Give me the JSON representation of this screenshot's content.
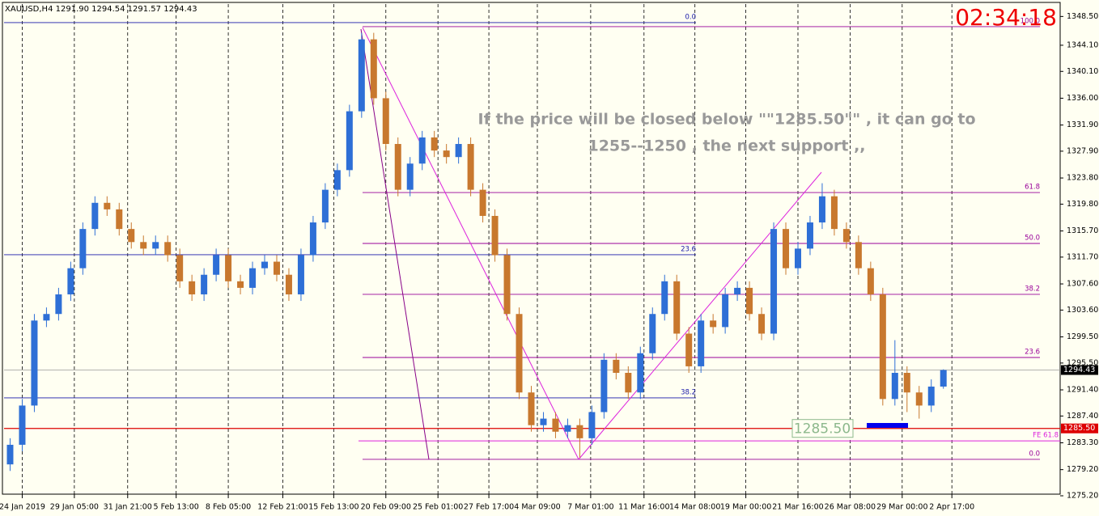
{
  "chart_data": {
    "type": "candlestick",
    "title": "XAUUSD,H4  1291.90 1294.54 1291.57 1294.43",
    "timer": "02:34:18",
    "annotation": [
      "If the price will be closed below \"\"1285.50\"\" , it can go to",
      "1255--1250 , the next support ,,"
    ],
    "up_color": "#2e6fd6",
    "down_color": "#c8782e",
    "open": [
      1280,
      1283,
      1289,
      1302,
      1303,
      1306,
      1310,
      1316,
      1320,
      1319,
      1316,
      1314,
      1313,
      1314,
      1312,
      1308,
      1306,
      1309,
      1312,
      1308,
      1307,
      1310,
      1311,
      1309,
      1306,
      1312,
      1317,
      1322,
      1325,
      1334,
      1345,
      1336,
      1329,
      1322,
      1326,
      1330,
      1328,
      1327,
      1329,
      1322,
      1318,
      1312,
      1303,
      1291,
      1286,
      1287,
      1285,
      1286,
      1284,
      1288,
      1296,
      1294,
      1291,
      1297,
      1303,
      1308,
      1300,
      1295,
      1302,
      1301,
      1306,
      1307,
      1303,
      1300,
      1316,
      1310,
      1313,
      1317,
      1321,
      1316,
      1314,
      1310,
      1306,
      1290,
      1294,
      1291,
      1289,
      1291.9
    ],
    "high": [
      1284,
      1290,
      1303,
      1304,
      1307,
      1311,
      1317,
      1321,
      1321,
      1320,
      1317,
      1315,
      1315,
      1315,
      1313,
      1309,
      1310,
      1313,
      1313,
      1309,
      1311,
      1312,
      1312,
      1310,
      1313,
      1318,
      1323,
      1326,
      1335,
      1346,
      1346,
      1337,
      1330,
      1327,
      1331,
      1331,
      1329,
      1330,
      1330,
      1323,
      1319,
      1313,
      1304,
      1292,
      1288,
      1288,
      1287,
      1287,
      1289,
      1297,
      1297,
      1295,
      1298,
      1304,
      1309,
      1309,
      1301,
      1303,
      1303,
      1307,
      1308,
      1308,
      1304,
      1317,
      1317,
      1314,
      1318,
      1323,
      1322,
      1317,
      1315,
      1311,
      1307,
      1299,
      1295,
      1292,
      1293,
      1294.54
    ],
    "low": [
      1279,
      1282,
      1288,
      1301,
      1302,
      1305,
      1309,
      1315,
      1318,
      1315,
      1313,
      1312,
      1312,
      1311,
      1307,
      1305,
      1305,
      1308,
      1307,
      1306,
      1306,
      1309,
      1308,
      1305,
      1305,
      1311,
      1316,
      1321,
      1324,
      1333,
      1335,
      1328,
      1321,
      1321,
      1325,
      1327,
      1326,
      1326,
      1321,
      1317,
      1311,
      1302,
      1290,
      1285,
      1285,
      1284,
      1284,
      1281,
      1283,
      1287,
      1293,
      1290,
      1290,
      1296,
      1302,
      1299,
      1294,
      1294,
      1300,
      1300,
      1305,
      1302,
      1299,
      1299,
      1309,
      1309,
      1312,
      1316,
      1315,
      1313,
      1309,
      1305,
      1289,
      1289,
      1288,
      1287,
      1288,
      1291.57
    ],
    "close": [
      1283,
      1289,
      1302,
      1303,
      1306,
      1310,
      1316,
      1320,
      1319,
      1316,
      1314,
      1313,
      1314,
      1312,
      1308,
      1306,
      1309,
      1312,
      1308,
      1307,
      1310,
      1311,
      1309,
      1306,
      1312,
      1317,
      1322,
      1325,
      1334,
      1345,
      1336,
      1329,
      1322,
      1326,
      1330,
      1328,
      1327,
      1329,
      1322,
      1318,
      1312,
      1303,
      1291,
      1286,
      1287,
      1285,
      1286,
      1284,
      1288,
      1296,
      1294,
      1291,
      1297,
      1303,
      1308,
      1300,
      1295,
      1302,
      1301,
      1306,
      1307,
      1303,
      1300,
      1316,
      1310,
      1313,
      1317,
      1321,
      1316,
      1314,
      1310,
      1306,
      1290,
      1294,
      1291,
      1289,
      1291.9,
      1294.43
    ],
    "xticks": [
      {
        "value": 1,
        "label": "24 Jan 2019"
      },
      {
        "value": 5.3,
        "label": "29 Jan 05:00"
      },
      {
        "value": 9.7,
        "label": "31 Jan 21:00"
      },
      {
        "value": 13.7,
        "label": "5 Feb 13:00"
      },
      {
        "value": 18,
        "label": "8 Feb 05:00"
      },
      {
        "value": 22.5,
        "label": "12 Feb 21:00"
      },
      {
        "value": 26.7,
        "label": "15 Feb 13:00"
      },
      {
        "value": 31,
        "label": "20 Feb 09:00"
      },
      {
        "value": 35.3,
        "label": "25 Feb 01:00"
      },
      {
        "value": 39.5,
        "label": "27 Feb 17:00"
      },
      {
        "value": 43.5,
        "label": "4 Mar 09:00"
      },
      {
        "value": 47.9,
        "label": "7 Mar 01:00"
      },
      {
        "value": 52.3,
        "label": "11 Mar 16:00"
      },
      {
        "value": 56.5,
        "label": "14 Mar 08:00"
      },
      {
        "value": 60.7,
        "label": "19 Mar 00:00"
      },
      {
        "value": 65,
        "label": "21 Mar 16:00"
      },
      {
        "value": 69.3,
        "label": "26 Mar 08:00"
      },
      {
        "value": 73.6,
        "label": "29 Mar 00:00"
      },
      {
        "value": 77.7,
        "label": "2 Apr 17:00"
      }
    ],
    "xlim": [
      -0.5,
      86.5
    ],
    "ylim": [
      1275.2,
      1350.4
    ],
    "yticks": [
      {
        "value": 1348.5,
        "label": "1348.50"
      },
      {
        "value": 1344.1,
        "label": "1344.10"
      },
      {
        "value": 1340.1,
        "label": "1340.10"
      },
      {
        "value": 1336,
        "label": "1336.00"
      },
      {
        "value": 1331.9,
        "label": "1331.90"
      },
      {
        "value": 1327.9,
        "label": "1327.90"
      },
      {
        "value": 1323.8,
        "label": "1323.80"
      },
      {
        "value": 1319.8,
        "label": "1319.80"
      },
      {
        "value": 1315.7,
        "label": "1315.70"
      },
      {
        "value": 1311.7,
        "label": "1311.70"
      },
      {
        "value": 1307.6,
        "label": "1307.60"
      },
      {
        "value": 1303.6,
        "label": "1303.60"
      },
      {
        "value": 1299.5,
        "label": "1299.50"
      },
      {
        "value": 1295.5,
        "label": "1295.50"
      },
      {
        "value": 1291.4,
        "label": "1291.40"
      },
      {
        "value": 1287.4,
        "label": "1287.40"
      },
      {
        "value": 1283.3,
        "label": "1283.30"
      },
      {
        "value": 1279.2,
        "label": "1279.20"
      },
      {
        "value": 1275.2,
        "label": "1275.20"
      }
    ],
    "grid": true,
    "fibo_purple": {
      "color": "#990099",
      "levels": [
        {
          "label": "100.0",
          "price": 1346.94
        },
        {
          "label": "61.8",
          "price": 1321.58
        },
        {
          "label": "50.0",
          "price": 1313.79
        },
        {
          "label": "38.2",
          "price": 1306.0
        },
        {
          "label": "23.6",
          "price": 1296.35
        },
        {
          "label": "0.0",
          "price": 1280.77
        }
      ]
    },
    "fibo_blue": {
      "color": "#1a1aaa",
      "levels": [
        {
          "label": "0.0",
          "price": 1347.56
        },
        {
          "label": "23.6",
          "price": 1312.06
        },
        {
          "label": "38.2",
          "price": 1290.17
        }
      ]
    },
    "expansion": {
      "label": "FE 61.8",
      "price": 1283.6,
      "color": "#dd22dd"
    },
    "current_price": {
      "price": 1294.43,
      "color": "#9a9a9a"
    },
    "level_line": {
      "price": 1285.5,
      "price_label": "1285.50",
      "color": "#dd0000"
    }
  }
}
